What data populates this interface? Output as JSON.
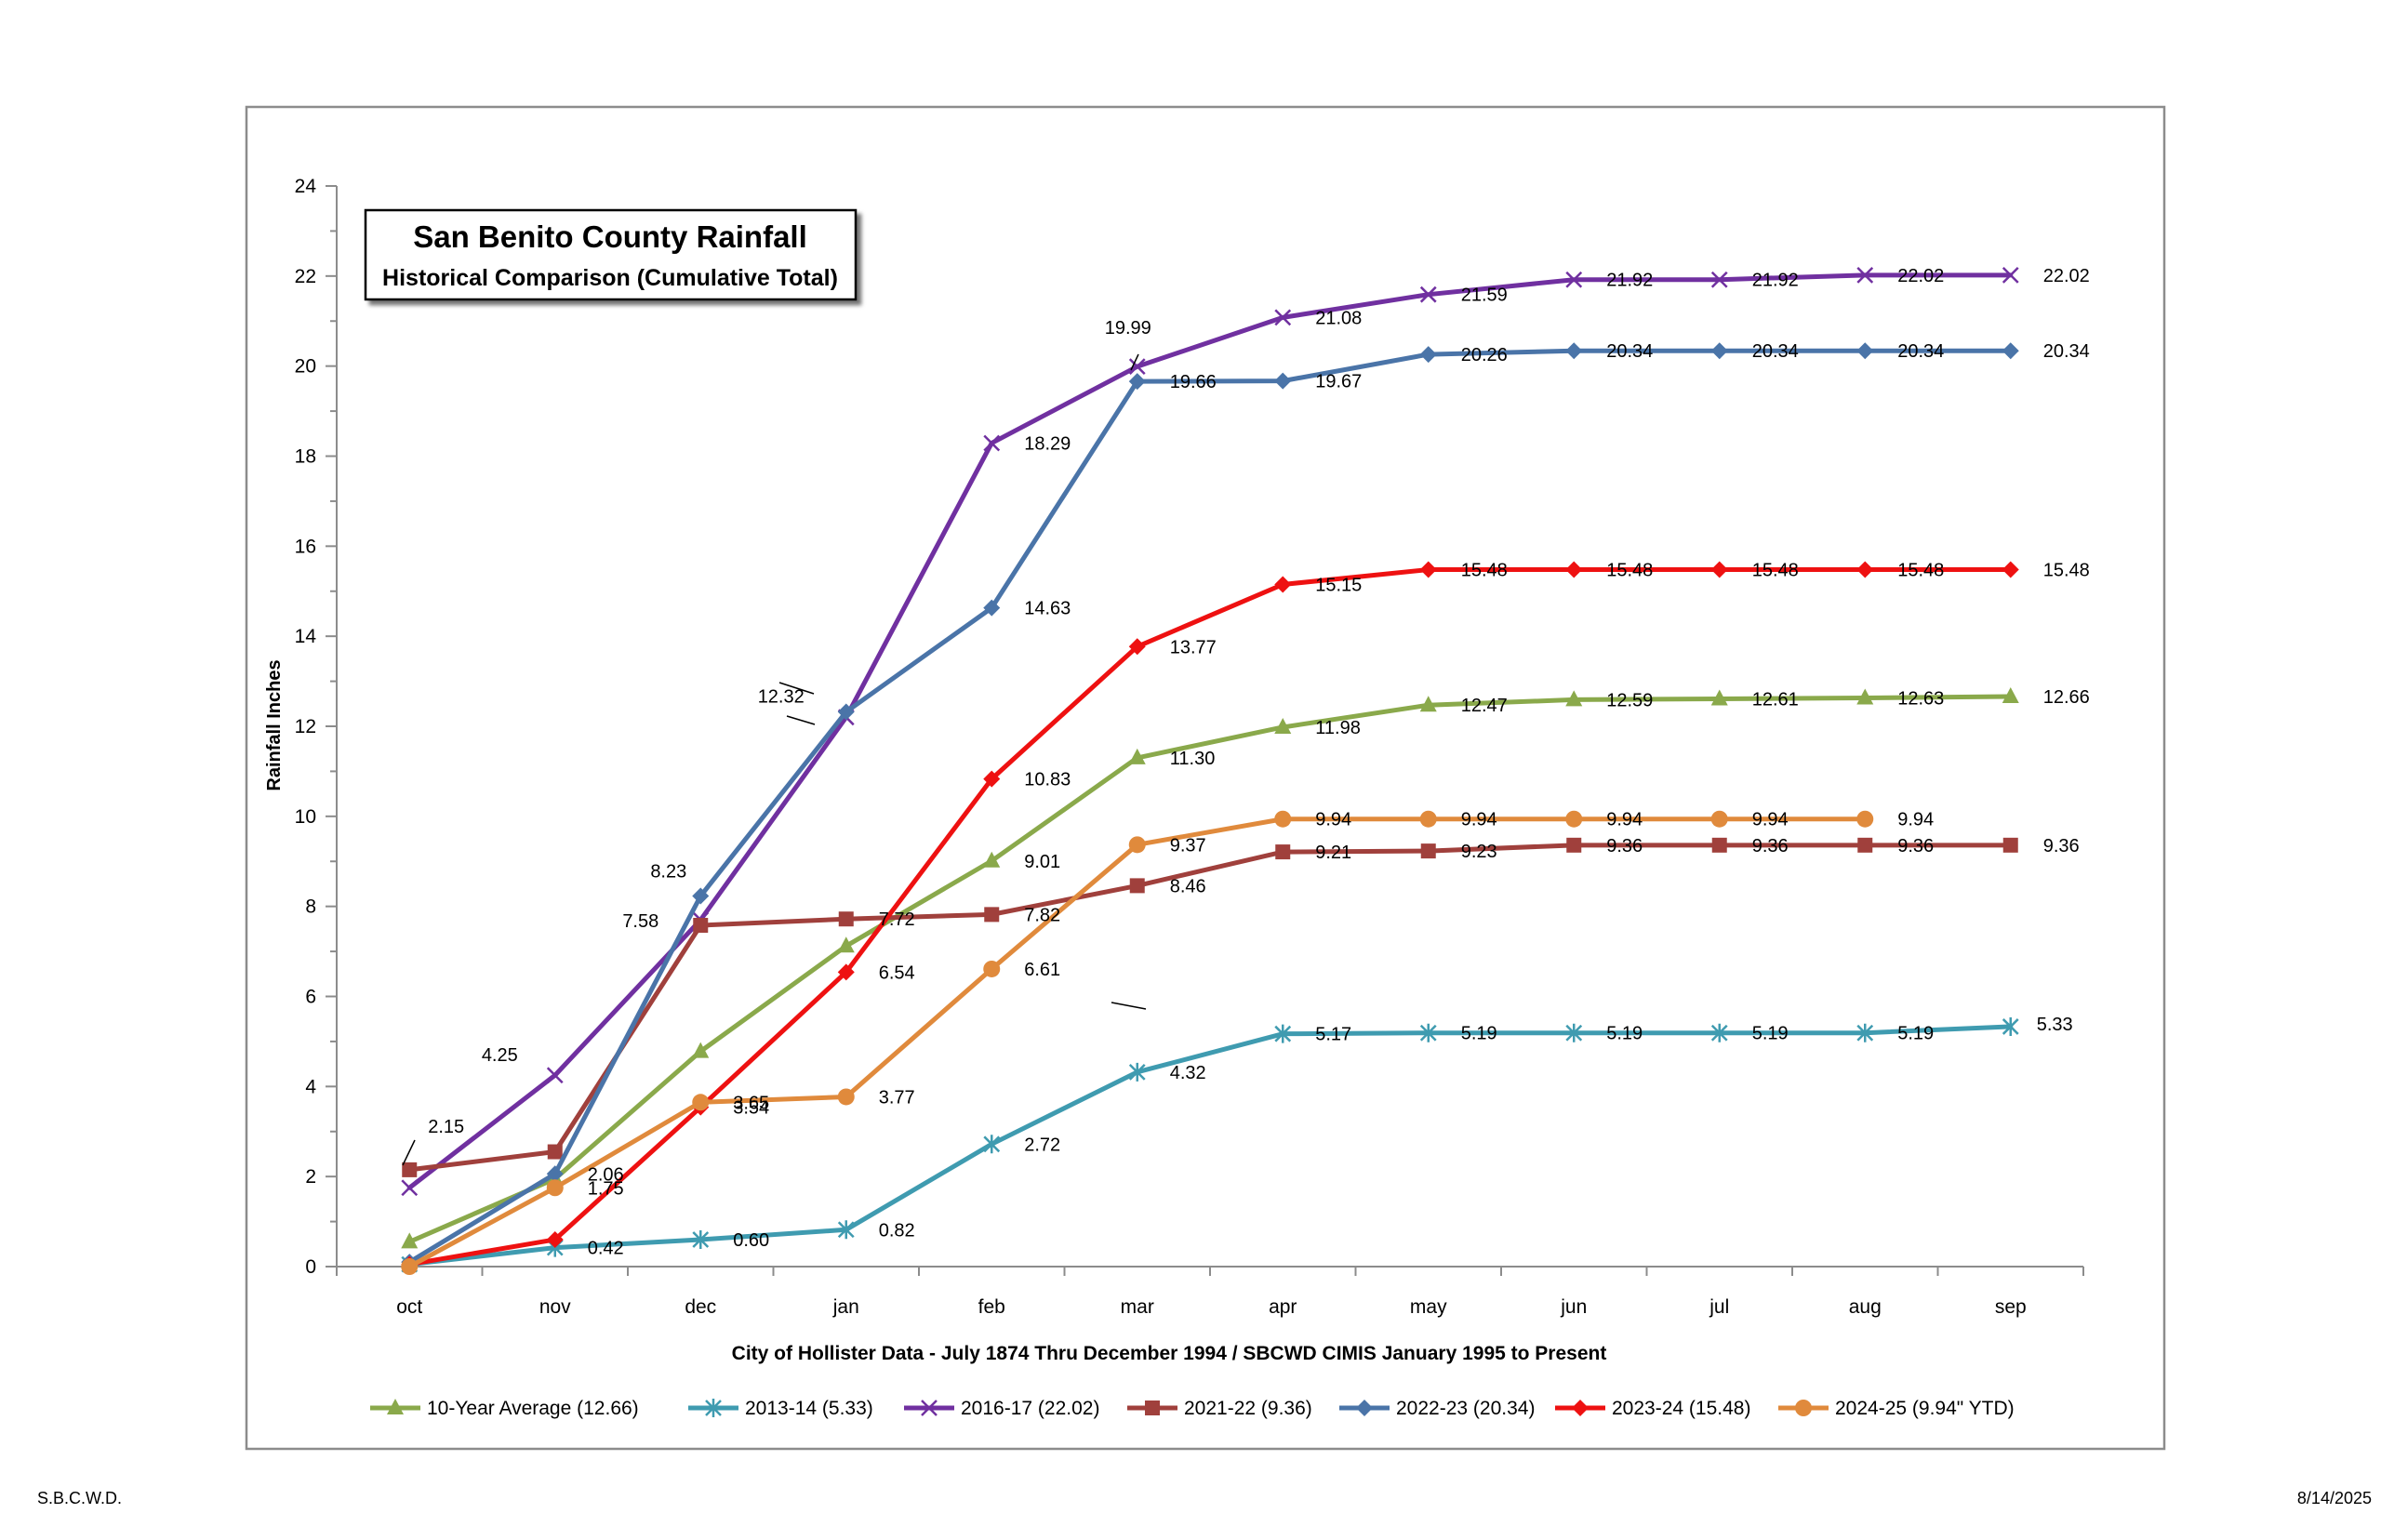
{
  "footer": {
    "left": "S.B.C.W.D.",
    "right": "8/14/2025"
  },
  "chart_data": {
    "type": "line",
    "title": "San Benito County Rainfall",
    "subtitle": "Historical Comparison (Cumulative Total)",
    "xlabel": "City of Hollister Data - July 1874 Thru December 1994 / SBCWD CIMIS January 1995 to Present",
    "ylabel": "Rainfall Inches",
    "ylim": [
      0,
      24
    ],
    "yticks": [
      0,
      2,
      4,
      6,
      8,
      10,
      12,
      14,
      16,
      18,
      20,
      22,
      24
    ],
    "grid": false,
    "legend_position": "bottom",
    "categories": [
      "oct",
      "nov",
      "dec",
      "jan",
      "feb",
      "mar",
      "apr",
      "may",
      "jun",
      "jul",
      "aug",
      "sep"
    ],
    "series": [
      {
        "name": "10-Year Average (12.66)",
        "color": "#8aa94b",
        "marker": "triangle",
        "values": [
          0.55,
          1.95,
          4.78,
          7.12,
          9.01,
          11.3,
          11.98,
          12.47,
          12.59,
          12.61,
          12.63,
          12.66
        ],
        "labels": [
          "",
          "",
          "",
          "",
          "9.01",
          "11.30",
          "11.98",
          "12.47",
          "12.59",
          "12.61",
          "12.63",
          "12.66"
        ]
      },
      {
        "name": "2013-14 (5.33)",
        "color": "#3f9bb0",
        "marker": "star",
        "values": [
          0.05,
          0.42,
          0.6,
          0.82,
          2.72,
          4.32,
          5.17,
          5.19,
          5.19,
          5.19,
          5.19,
          5.33
        ],
        "labels": [
          "",
          "0.42",
          "0.60",
          "0.82",
          "2.72",
          "4.32",
          "5.17",
          "5.19",
          "5.19",
          "5.19",
          "5.19",
          "5.33"
        ]
      },
      {
        "name": "2016-17 (22.02)",
        "color": "#7030a0",
        "marker": "x",
        "values": [
          1.75,
          4.25,
          7.7,
          12.2,
          18.29,
          19.99,
          21.08,
          21.59,
          21.92,
          21.92,
          22.02,
          22.02
        ],
        "labels": [
          "",
          "4.25",
          "",
          "",
          "18.29",
          "19.99",
          "21.08",
          "21.59",
          "21.92",
          "21.92",
          "22.02",
          "22.02"
        ]
      },
      {
        "name": "2021-22 (9.36)",
        "color": "#a0403c",
        "marker": "square",
        "values": [
          2.15,
          2.55,
          7.58,
          7.72,
          7.82,
          8.46,
          9.21,
          9.23,
          9.36,
          9.36,
          9.36,
          9.36
        ],
        "labels": [
          "2.15",
          "",
          "7.58",
          "7.72",
          "7.82",
          "8.46",
          "9.21",
          "9.23",
          "9.36",
          "9.36",
          "9.36",
          "9.36"
        ]
      },
      {
        "name": "2022-23 (20.34)",
        "color": "#4a74a8",
        "marker": "diamond",
        "values": [
          0.1,
          2.06,
          8.23,
          12.32,
          14.63,
          19.66,
          19.67,
          20.26,
          20.34,
          20.34,
          20.34,
          20.34
        ],
        "labels": [
          "",
          "2.06",
          "8.23",
          "12.32",
          "14.63",
          "19.66",
          "19.67",
          "20.26",
          "20.34",
          "20.34",
          "20.34",
          "20.34"
        ]
      },
      {
        "name": "2023-24 (15.48)",
        "color": "#ee1111",
        "marker": "diamond",
        "values": [
          0.05,
          0.6,
          3.54,
          6.54,
          10.83,
          13.77,
          15.15,
          15.48,
          15.48,
          15.48,
          15.48,
          15.48
        ],
        "labels": [
          "",
          "",
          "3.54",
          "6.54",
          "10.83",
          "13.77",
          "15.15",
          "15.48",
          "15.48",
          "15.48",
          "15.48",
          "15.48"
        ]
      },
      {
        "name": "2024-25 (9.94\" YTD)",
        "color": "#e08a3c",
        "marker": "circle",
        "values": [
          0.0,
          1.75,
          3.65,
          3.77,
          6.61,
          9.37,
          9.94,
          9.94,
          9.94,
          9.94,
          9.94,
          null
        ],
        "labels": [
          "",
          "1.75",
          "3.65",
          "3.77",
          "6.61",
          "9.37",
          "9.94",
          "9.94",
          "9.94",
          "9.94",
          "9.94",
          ""
        ]
      }
    ]
  }
}
